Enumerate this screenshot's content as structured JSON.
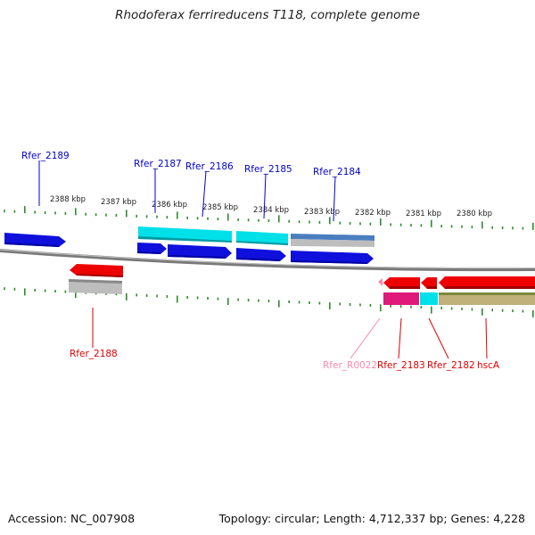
{
  "title": "Rhodoferax ferrireducens T118, complete genome",
  "footer": {
    "accession": "Accession: NC_007908",
    "summary": "Topology: circular; Length: 4,712,337 bp; Genes: 4,228"
  },
  "colors": {
    "tick": "#2e8b2e",
    "backbone": "#8a8a8a",
    "top_label": "#0000cc",
    "bottom_label": "#dd0000",
    "rna_label": "#ff88aa"
  },
  "kbp_labels": [
    "2388 kbp",
    "2387 kbp",
    "2386 kbp",
    "2385 kbp",
    "2384 kbp",
    "2383 kbp",
    "2382 kbp",
    "2381 kbp",
    "2380 kbp"
  ],
  "genes_top": [
    "Rfer_2189",
    "Rfer_2187",
    "Rfer_2186",
    "Rfer_2185",
    "Rfer_2184"
  ],
  "genes_bottom": [
    "Rfer_2188",
    "Rfer_R0022",
    "Rfer_2183",
    "Rfer_2182",
    "hscA"
  ]
}
